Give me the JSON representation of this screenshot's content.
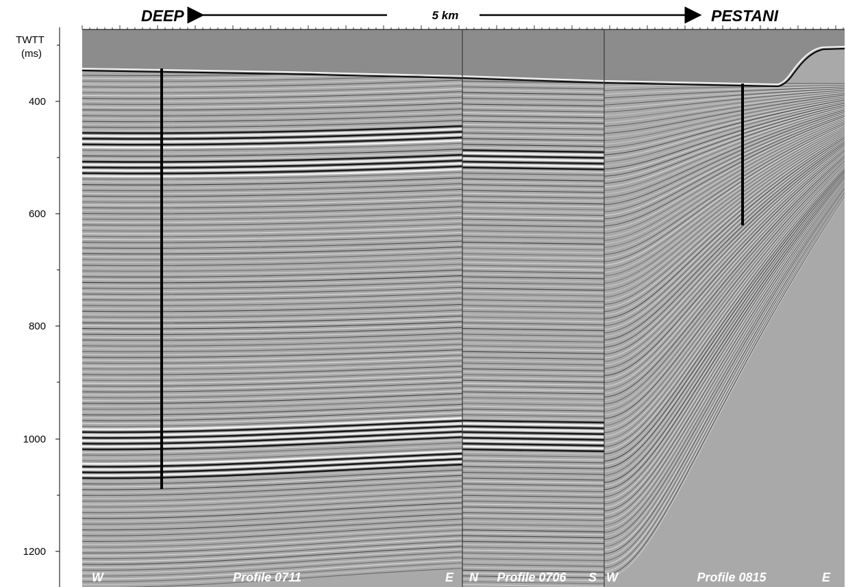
{
  "header": {
    "left_label": "DEEP",
    "scale_label": "5 km",
    "right_label": "PESTANI"
  },
  "axis": {
    "title_line1": "TWTT",
    "title_line2": "(ms)",
    "ticks": [
      "400",
      "600",
      "800",
      "1000",
      "1200"
    ],
    "tick_values": [
      400,
      600,
      800,
      1000,
      1200
    ],
    "range_ms": [
      290,
      1265
    ]
  },
  "panels": [
    {
      "left_label": "W",
      "title": "Profile 0711",
      "right_label": "E"
    },
    {
      "left_label": "N",
      "title": "Profile 0706",
      "right_label": "S"
    },
    {
      "left_label": "W",
      "title": "Profile 0815",
      "right_label": "E"
    }
  ],
  "colors": {
    "water": "#8c8c8c",
    "background_gray": "#a9a9a9",
    "reflector_dark": "#111111",
    "reflector_light": "#f4f4f4",
    "well": "#000000"
  }
}
